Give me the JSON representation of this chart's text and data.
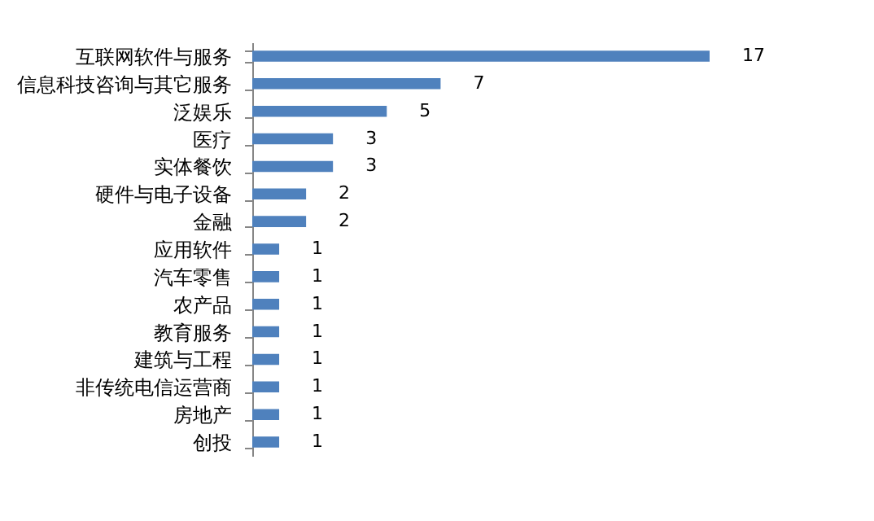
{
  "chart_data": {
    "type": "bar",
    "orientation": "horizontal",
    "categories": [
      "互联网软件与服务",
      "信息科技咨询与其它服务",
      "泛娱乐",
      "医疗",
      "实体餐饮",
      "硬件与电子设备",
      "金融",
      "应用软件",
      "汽车零售",
      "农产品",
      "教育服务",
      "建筑与工程",
      "非传统电信运营商",
      "房地产",
      "创投"
    ],
    "values": [
      17,
      7,
      5,
      3,
      3,
      2,
      2,
      1,
      1,
      1,
      1,
      1,
      1,
      1,
      1
    ],
    "color": "#4f81bd",
    "data_labels": true
  }
}
